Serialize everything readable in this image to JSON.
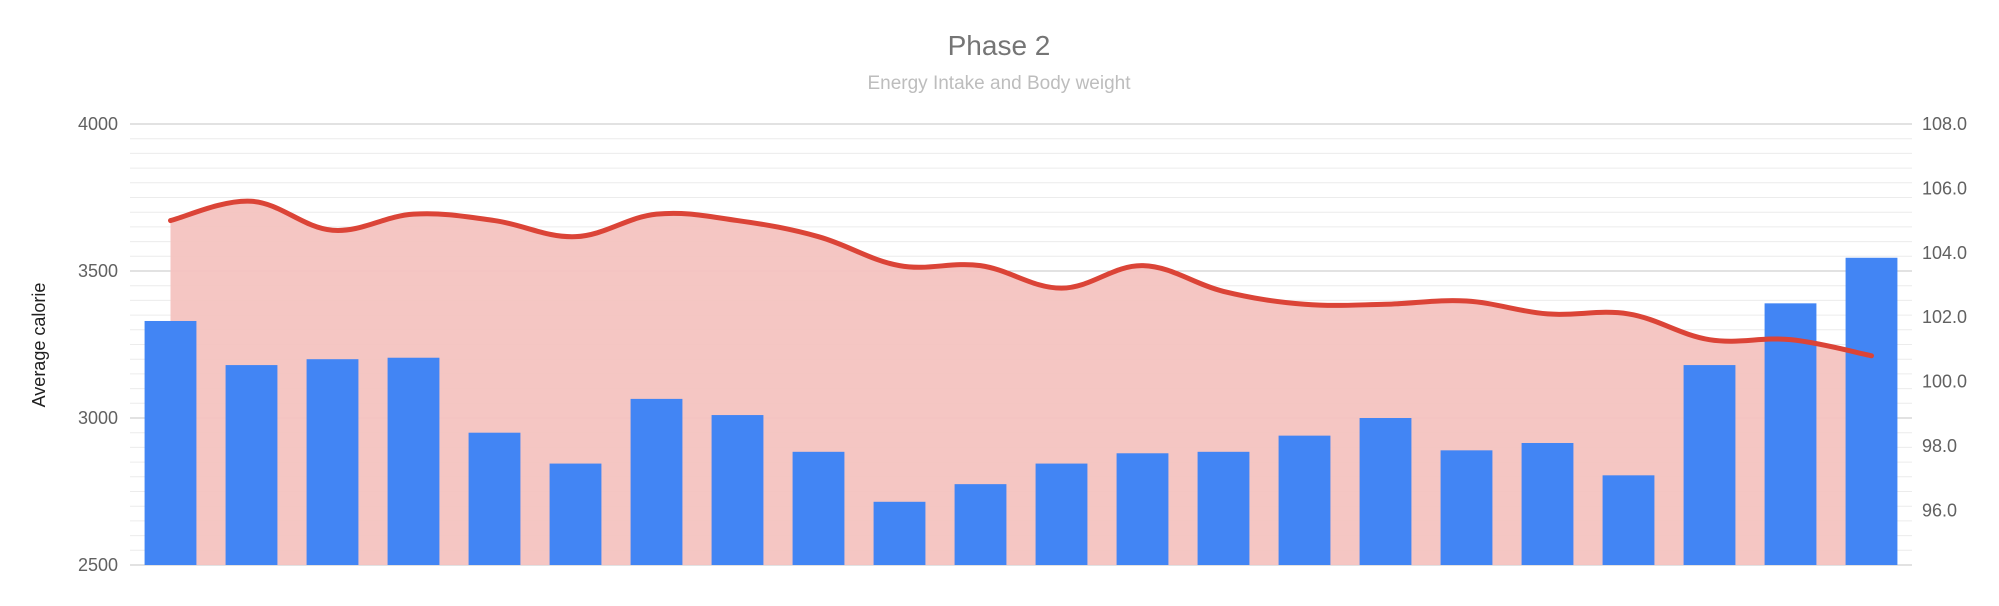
{
  "chart_data": {
    "type": "bar+line",
    "title": "Phase 2",
    "subtitle": "Energy Intake and Body weight",
    "ylabel": "Average calorie",
    "y2label": "",
    "ylim": [
      2500,
      4000
    ],
    "y2lim": [
      94.3,
      108.0
    ],
    "yticks": [
      "4000",
      "3500",
      "3000",
      "2500"
    ],
    "y2ticks": [
      "108.0",
      "106.0",
      "104.0",
      "102.0",
      "100.0",
      "98.0",
      "96.0"
    ],
    "grid": true,
    "legend": "none",
    "colors": {
      "bars": "#4285f4",
      "line": "#db4437",
      "area": "#f4c3c0"
    },
    "series": [
      {
        "kind": "bar",
        "axis": "left",
        "values": [
          3330,
          3180,
          3200,
          3205,
          2950,
          2845,
          3065,
          3010,
          2885,
          2715,
          2775,
          2845,
          2880,
          2885,
          2940,
          3000,
          2890,
          2915,
          2805,
          3180,
          3390,
          3545
        ]
      },
      {
        "kind": "area-line",
        "axis": "right",
        "values": [
          105.0,
          105.6,
          104.7,
          105.2,
          105.0,
          104.5,
          105.2,
          105.0,
          104.5,
          103.6,
          103.6,
          102.9,
          103.6,
          102.8,
          102.4,
          102.4,
          102.5,
          102.1,
          102.1,
          101.3,
          101.3,
          100.8
        ]
      }
    ]
  }
}
